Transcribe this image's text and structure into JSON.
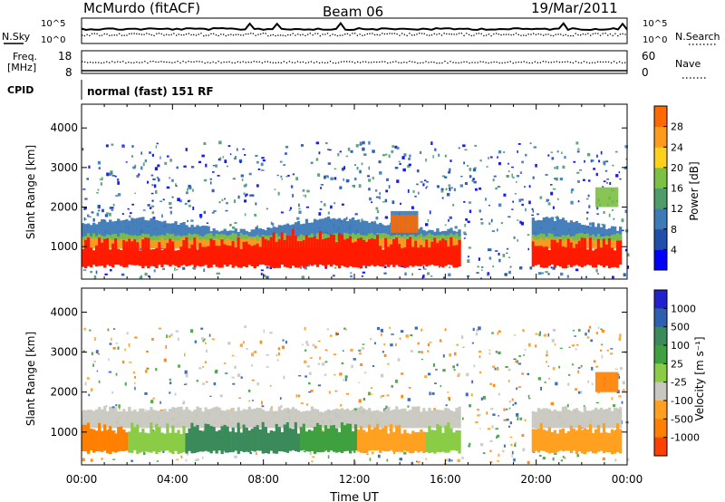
{
  "header": {
    "station": "McMurdo (fitACF)",
    "beam": "Beam 06",
    "date": "19/Mar/2011"
  },
  "aux_panels": {
    "nsky_label": "N.Sky",
    "nsearch_label": "N.Search",
    "freq_label_1": "Freq.",
    "freq_label_2": "[MHz]",
    "nave_label": "Nave",
    "cpid_label": "CPID",
    "cpid_value": "normal (fast) 151 RF",
    "noise_ticks": [
      "10^5",
      "10^0"
    ],
    "freq_ticks": [
      "18",
      "8"
    ],
    "nave_ticks": [
      "60",
      "0"
    ]
  },
  "colors": {
    "power_scale": [
      "#0000ff",
      "#1f4fa8",
      "#3d7ab8",
      "#4f9c6a",
      "#7cc044",
      "#ffd21a",
      "#ff9a1a",
      "#ff6a00",
      "#ff1a00"
    ],
    "velocity_scale": [
      "#2222cc",
      "#2f5fb0",
      "#3a8a5a",
      "#3fa03f",
      "#8acc45",
      "#c8c8c0",
      "#ffa020",
      "#ff8000",
      "#ff4000",
      "#ff0000"
    ]
  },
  "chart_data": [
    {
      "type": "heatmap",
      "title": "",
      "ylabel": "Slant Range [km]",
      "xlabel": "",
      "ylim": [
        180,
        4600
      ],
      "xlim": [
        "00:00",
        "24:00"
      ],
      "yticks": [
        "1000",
        "2000",
        "3000",
        "4000"
      ],
      "colorbar": {
        "label": "Power [dB]",
        "ticks": [
          "4",
          "8",
          "12",
          "16",
          "20",
          "24",
          "28"
        ],
        "range": [
          0,
          32
        ]
      }
    },
    {
      "type": "heatmap",
      "title": "",
      "ylabel": "Slant Range [km]",
      "xlabel": "Time UT",
      "ylim": [
        180,
        4600
      ],
      "xlim": [
        "00:00",
        "24:00"
      ],
      "xticks": [
        "00:00",
        "04:00",
        "08:00",
        "12:00",
        "16:00",
        "20:00",
        "00:00"
      ],
      "yticks": [
        "1000",
        "2000",
        "3000",
        "4000"
      ],
      "colorbar": {
        "label": "Velocity [m s⁻¹]",
        "ticks": [
          "1000",
          "500",
          "100",
          "25",
          "-25",
          "-100",
          "-500",
          "-1000"
        ]
      }
    }
  ]
}
